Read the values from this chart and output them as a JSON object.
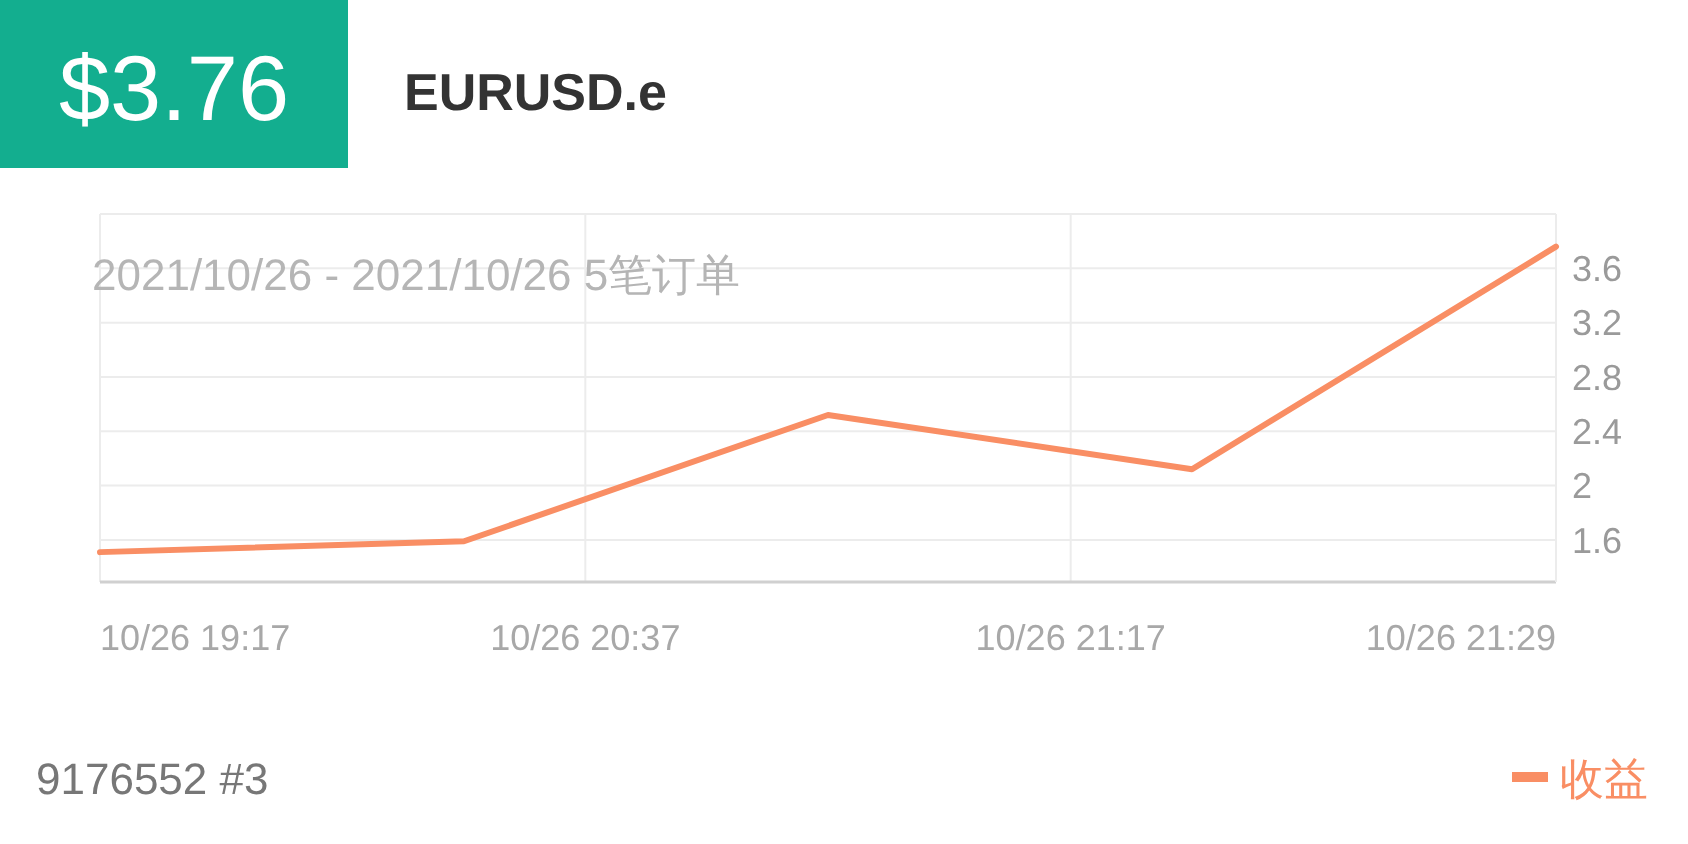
{
  "chart_data": {
    "type": "line",
    "title": "$3.76",
    "subtitle": "EURUSD.e",
    "annotations": [
      "2021/10/26 - 2021/10/26  5笔订单",
      "9176552 #3",
      "10/26 19:17",
      "10/26 20:37",
      "10/26 21:17",
      "10/26 21:29"
    ],
    "categories": [
      null,
      null,
      null,
      null,
      null
    ],
    "series": [
      {
        "name": "收益",
        "color": "#f98e64",
        "values": [
          1.51,
          1.59,
          2.52,
          2.12,
          3.76
        ]
      }
    ],
    "ylim": [
      1.29,
      4.0
    ],
    "yticks": [
      1.6,
      2.0,
      2.4,
      2.8,
      3.2,
      3.6
    ],
    "grid": true,
    "legend": "bottom right",
    "marker": "none",
    "line_style": "solid"
  }
}
